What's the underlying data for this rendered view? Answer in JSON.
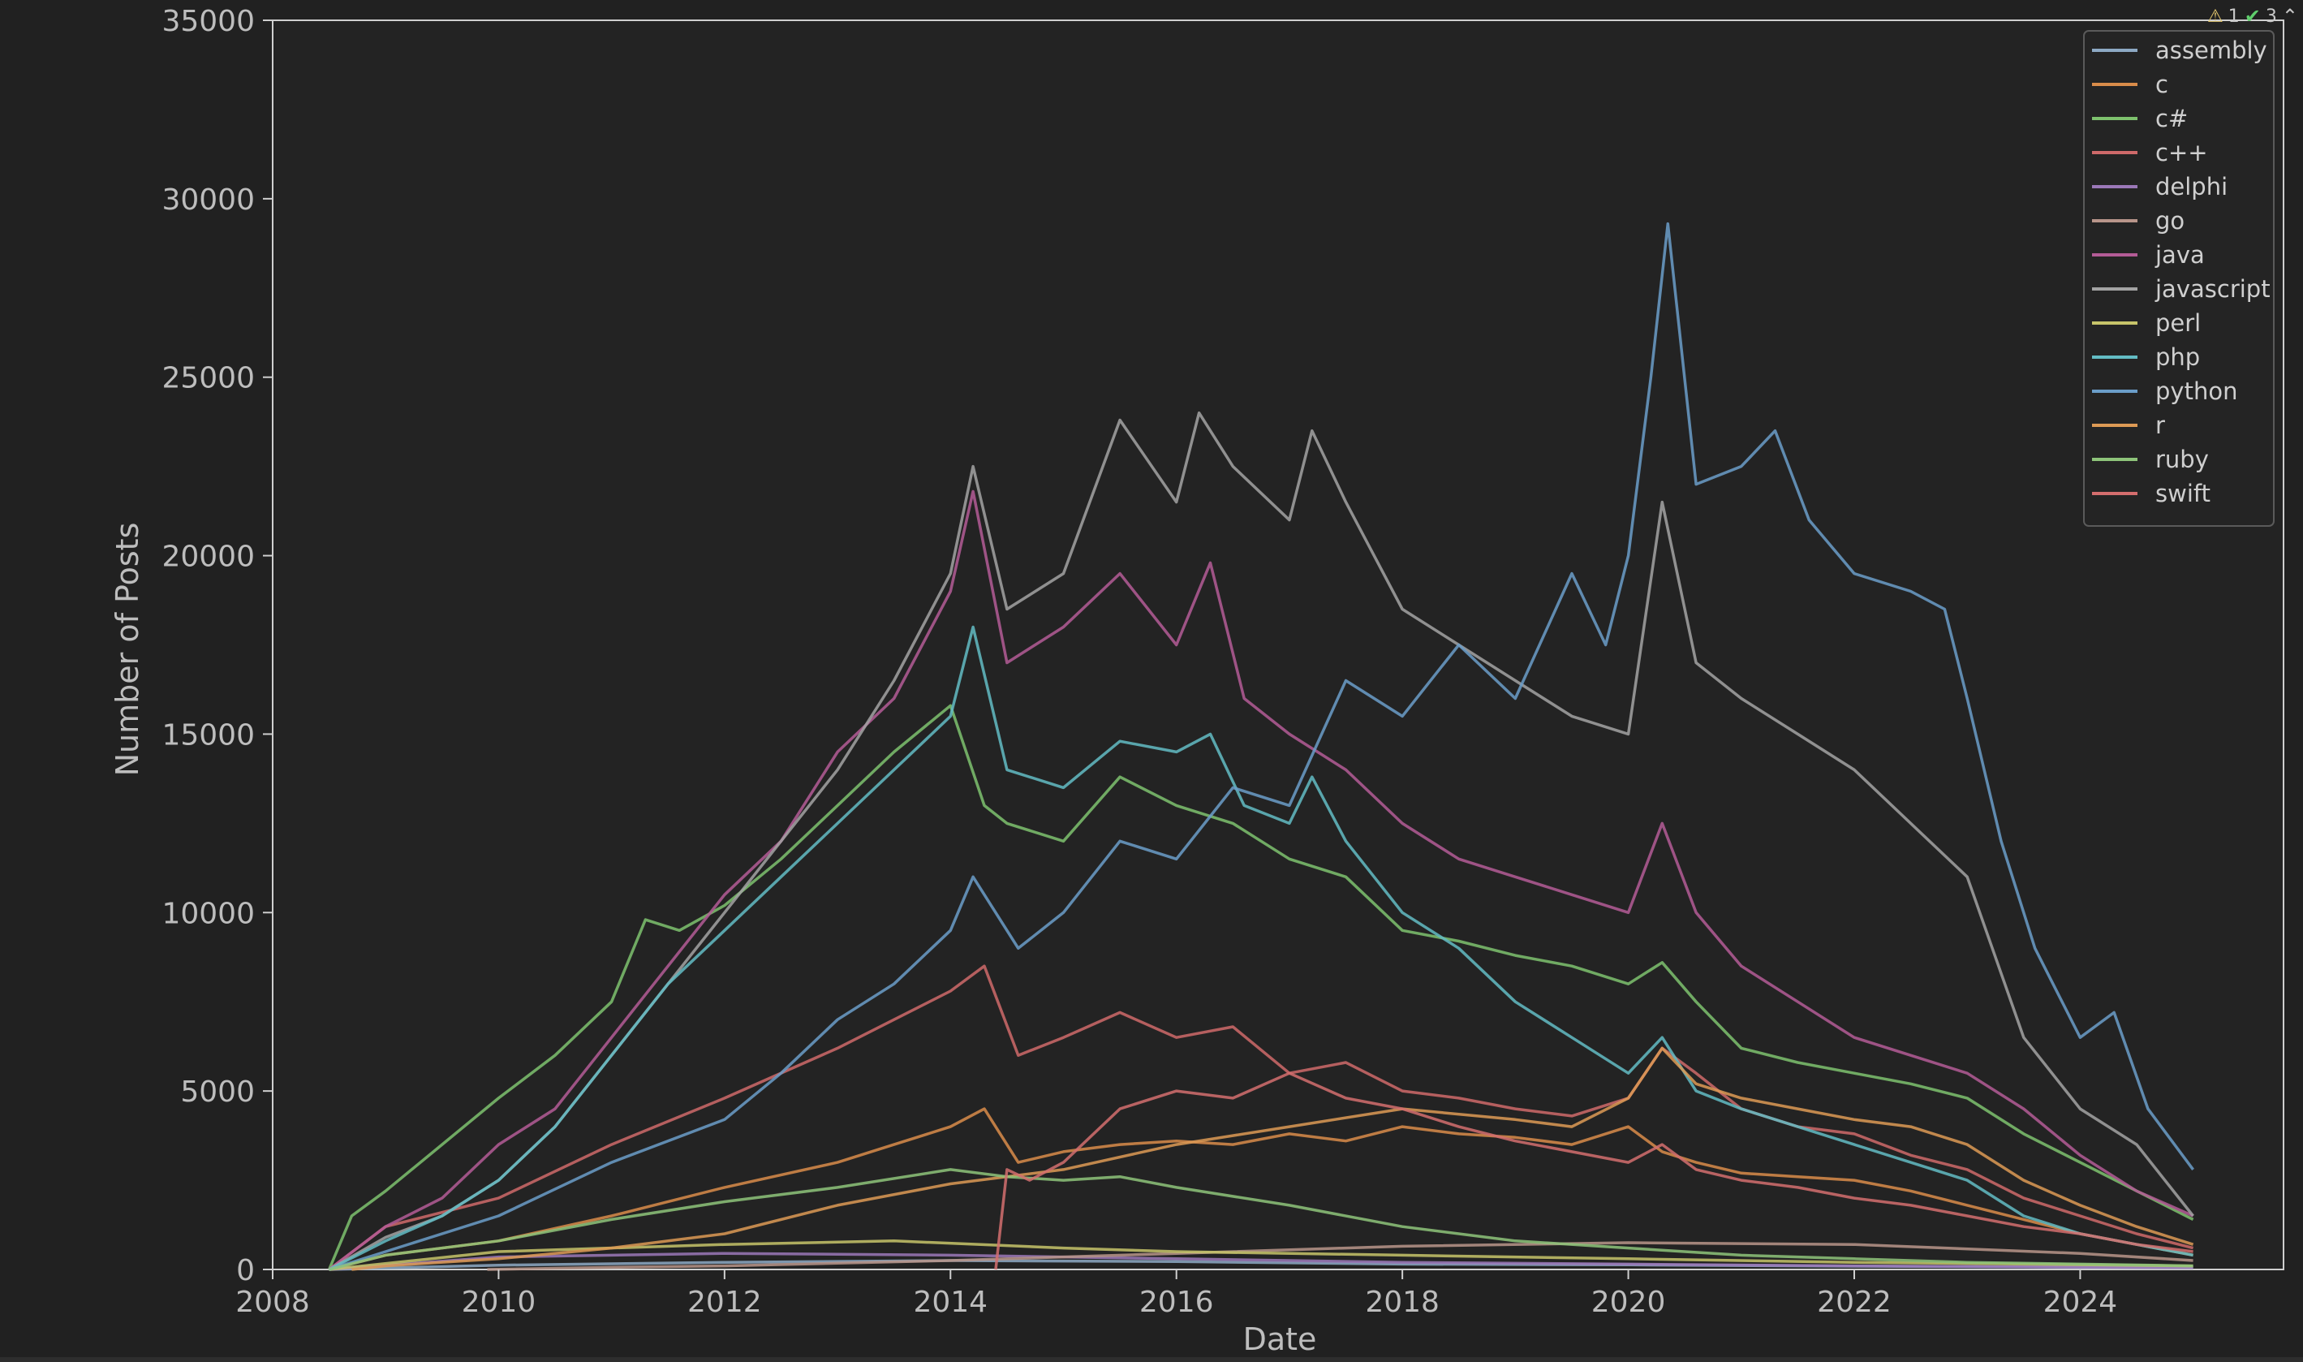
{
  "toolbar": {
    "warnings": "1",
    "checks": "3"
  },
  "chart_data": {
    "type": "line",
    "xlabel": "Date",
    "ylabel": "Number of Posts",
    "xlim": [
      2008.0,
      2025.8
    ],
    "ylim": [
      0,
      35000
    ],
    "xticks": [
      2008,
      2010,
      2012,
      2014,
      2016,
      2018,
      2020,
      2022,
      2024
    ],
    "yticks": [
      0,
      5000,
      10000,
      15000,
      20000,
      25000,
      30000,
      35000
    ],
    "grid": false,
    "legend_position": "top-right",
    "series": [
      {
        "name": "assembly",
        "color": "#8da9c4",
        "x": [
          2008.5,
          2010,
          2012,
          2014,
          2016,
          2018,
          2020,
          2022,
          2025
        ],
        "y": [
          0,
          120,
          200,
          250,
          220,
          150,
          130,
          90,
          50
        ]
      },
      {
        "name": "c",
        "color": "#d98c4a",
        "x": [
          2008.5,
          2009,
          2010,
          2011,
          2012,
          2013,
          2013.5,
          2014,
          2014.3,
          2014.6,
          2015,
          2015.5,
          2016,
          2016.5,
          2017,
          2017.5,
          2018,
          2018.5,
          2019,
          2019.5,
          2020,
          2020.3,
          2020.6,
          2021,
          2021.5,
          2022,
          2022.5,
          2023,
          2023.5,
          2024,
          2024.5,
          2025
        ],
        "y": [
          0,
          400,
          800,
          1500,
          2300,
          3000,
          3500,
          4000,
          4500,
          3000,
          3300,
          3500,
          3600,
          3500,
          3800,
          3600,
          4000,
          3800,
          3700,
          3500,
          4000,
          3300,
          3000,
          2700,
          2600,
          2500,
          2200,
          1800,
          1400,
          1000,
          700,
          400
        ]
      },
      {
        "name": "c#",
        "color": "#7ec26e",
        "x": [
          2008.5,
          2008.7,
          2009,
          2009.5,
          2010,
          2010.5,
          2011,
          2011.3,
          2011.6,
          2012,
          2012.5,
          2013,
          2013.5,
          2014,
          2014.3,
          2014.5,
          2015,
          2015.5,
          2016,
          2016.5,
          2017,
          2017.5,
          2018,
          2018.5,
          2019,
          2019.5,
          2020,
          2020.3,
          2020.6,
          2021,
          2021.5,
          2022,
          2022.5,
          2023,
          2023.5,
          2024,
          2024.5,
          2025
        ],
        "y": [
          0,
          1500,
          2200,
          3500,
          4800,
          6000,
          7500,
          9800,
          9500,
          10200,
          11500,
          13000,
          14500,
          15800,
          13000,
          12500,
          12000,
          13800,
          13000,
          12500,
          11500,
          11000,
          9500,
          9200,
          8800,
          8500,
          8000,
          8600,
          7500,
          6200,
          5800,
          5500,
          5200,
          4800,
          3800,
          3000,
          2200,
          1400
        ]
      },
      {
        "name": "c++",
        "color": "#cf6a6a",
        "x": [
          2008.5,
          2009,
          2010,
          2011,
          2012,
          2013,
          2013.5,
          2014,
          2014.3,
          2014.6,
          2015,
          2015.5,
          2016,
          2016.5,
          2017,
          2017.5,
          2018,
          2018.5,
          2019,
          2019.5,
          2020,
          2020.3,
          2020.6,
          2021,
          2021.5,
          2022,
          2022.5,
          2023,
          2023.5,
          2024,
          2024.5,
          2025
        ],
        "y": [
          0,
          1200,
          2000,
          3500,
          4800,
          6200,
          7000,
          7800,
          8500,
          6000,
          6500,
          7200,
          6500,
          6800,
          5500,
          5800,
          5000,
          4800,
          4500,
          4300,
          4800,
          6200,
          5500,
          4500,
          4000,
          3800,
          3200,
          2800,
          2000,
          1500,
          1000,
          600
        ]
      },
      {
        "name": "delphi",
        "color": "#9b78b8",
        "x": [
          2008.5,
          2010,
          2012,
          2014,
          2016,
          2018,
          2020,
          2022,
          2025
        ],
        "y": [
          0,
          350,
          450,
          400,
          300,
          200,
          150,
          100,
          50
        ]
      },
      {
        "name": "go",
        "color": "#b8958a",
        "x": [
          2009.9,
          2011,
          2012,
          2014,
          2016,
          2018,
          2020,
          2022,
          2024,
          2025
        ],
        "y": [
          0,
          60,
          100,
          250,
          450,
          650,
          750,
          700,
          450,
          250
        ]
      },
      {
        "name": "java",
        "color": "#b45c96",
        "x": [
          2008.5,
          2009,
          2009.5,
          2010,
          2010.5,
          2011,
          2011.5,
          2012,
          2012.5,
          2013,
          2013.5,
          2014,
          2014.2,
          2014.5,
          2015,
          2015.5,
          2016,
          2016.3,
          2016.6,
          2017,
          2017.5,
          2018,
          2018.5,
          2019,
          2019.5,
          2020,
          2020.3,
          2020.6,
          2021,
          2021.5,
          2022,
          2022.5,
          2023,
          2023.5,
          2024,
          2024.5,
          2025
        ],
        "y": [
          0,
          1200,
          2000,
          3500,
          4500,
          6500,
          8500,
          10500,
          12000,
          14500,
          16000,
          19000,
          21800,
          17000,
          18000,
          19500,
          17500,
          19800,
          16000,
          15000,
          14000,
          12500,
          11500,
          11000,
          10500,
          10000,
          12500,
          10000,
          8500,
          7500,
          6500,
          6000,
          5500,
          4500,
          3200,
          2200,
          1500
        ]
      },
      {
        "name": "javascript",
        "color": "#a3a3a3",
        "x": [
          2008.5,
          2009,
          2009.5,
          2010,
          2010.5,
          2011,
          2011.5,
          2012,
          2012.5,
          2013,
          2013.5,
          2014,
          2014.2,
          2014.5,
          2015,
          2015.5,
          2016,
          2016.2,
          2016.5,
          2017,
          2017.2,
          2017.5,
          2018,
          2018.5,
          2019,
          2019.5,
          2020,
          2020.3,
          2020.6,
          2021,
          2021.5,
          2022,
          2022.5,
          2023,
          2023.5,
          2024,
          2024.5,
          2025
        ],
        "y": [
          0,
          900,
          1500,
          2500,
          4000,
          6000,
          8000,
          10000,
          12000,
          14000,
          16500,
          19500,
          22500,
          18500,
          19500,
          23800,
          21500,
          24000,
          22500,
          21000,
          23500,
          21500,
          18500,
          17500,
          16500,
          15500,
          15000,
          21500,
          17000,
          16000,
          15000,
          14000,
          12500,
          11000,
          6500,
          4500,
          3500,
          1500
        ]
      },
      {
        "name": "perl",
        "color": "#c7c46a",
        "x": [
          2008.5,
          2010,
          2012,
          2013.5,
          2015,
          2016,
          2018,
          2020,
          2022,
          2025
        ],
        "y": [
          0,
          500,
          700,
          800,
          600,
          500,
          400,
          300,
          200,
          100
        ]
      },
      {
        "name": "php",
        "color": "#63bcc4",
        "x": [
          2008.5,
          2009,
          2009.5,
          2010,
          2010.5,
          2011,
          2011.5,
          2012,
          2012.5,
          2013,
          2013.5,
          2014,
          2014.2,
          2014.5,
          2015,
          2015.5,
          2016,
          2016.3,
          2016.6,
          2017,
          2017.2,
          2017.5,
          2018,
          2018.5,
          2019,
          2019.5,
          2020,
          2020.3,
          2020.6,
          2021,
          2021.5,
          2022,
          2022.5,
          2023,
          2023.5,
          2024,
          2024.5,
          2025
        ],
        "y": [
          0,
          800,
          1500,
          2500,
          4000,
          6000,
          8000,
          9500,
          11000,
          12500,
          14000,
          15500,
          18000,
          14000,
          13500,
          14800,
          14500,
          15000,
          13000,
          12500,
          13800,
          12000,
          10000,
          9000,
          7500,
          6500,
          5500,
          6500,
          5000,
          4500,
          4000,
          3500,
          3000,
          2500,
          1500,
          1000,
          700,
          400
        ]
      },
      {
        "name": "python",
        "color": "#6b9ec9",
        "x": [
          2008.5,
          2009,
          2010,
          2011,
          2012,
          2012.5,
          2013,
          2013.5,
          2014,
          2014.2,
          2014.6,
          2015,
          2015.5,
          2016,
          2016.5,
          2017,
          2017.5,
          2018,
          2018.5,
          2019,
          2019.5,
          2019.8,
          2020,
          2020.2,
          2020.35,
          2020.6,
          2021,
          2021.3,
          2021.6,
          2022,
          2022.5,
          2022.8,
          2023,
          2023.3,
          2023.6,
          2024,
          2024.3,
          2024.6,
          2025
        ],
        "y": [
          0,
          500,
          1500,
          3000,
          4200,
          5500,
          7000,
          8000,
          9500,
          11000,
          9000,
          10000,
          12000,
          11500,
          13500,
          13000,
          16500,
          15500,
          17500,
          16000,
          19500,
          17500,
          20000,
          25000,
          29300,
          22000,
          22500,
          23500,
          21000,
          19500,
          19000,
          18500,
          16000,
          12000,
          9000,
          6500,
          7200,
          4500,
          2800
        ]
      },
      {
        "name": "r",
        "color": "#dd9a55",
        "x": [
          2008.7,
          2009,
          2010,
          2011,
          2012,
          2013,
          2014,
          2015,
          2016,
          2017,
          2018,
          2019,
          2019.5,
          2020,
          2020.3,
          2020.6,
          2021,
          2021.5,
          2022,
          2022.5,
          2023,
          2023.5,
          2024,
          2024.5,
          2025
        ],
        "y": [
          0,
          100,
          300,
          600,
          1000,
          1800,
          2400,
          2800,
          3500,
          4000,
          4500,
          4200,
          4000,
          4800,
          6200,
          5200,
          4800,
          4500,
          4200,
          4000,
          3500,
          2500,
          1800,
          1200,
          700
        ]
      },
      {
        "name": "ruby",
        "color": "#8ec47a",
        "x": [
          2008.5,
          2009,
          2010,
          2011,
          2012,
          2013,
          2014,
          2014.5,
          2015,
          2015.5,
          2016,
          2017,
          2018,
          2019,
          2020,
          2021,
          2022,
          2023,
          2024,
          2025
        ],
        "y": [
          0,
          400,
          800,
          1400,
          1900,
          2300,
          2800,
          2600,
          2500,
          2600,
          2300,
          1800,
          1200,
          800,
          600,
          400,
          300,
          200,
          150,
          100
        ]
      },
      {
        "name": "swift",
        "color": "#d46e6e",
        "x": [
          2014.4,
          2014.5,
          2014.7,
          2015,
          2015.5,
          2016,
          2016.5,
          2017,
          2017.5,
          2018,
          2018.5,
          2019,
          2019.5,
          2020,
          2020.3,
          2020.6,
          2021,
          2021.5,
          2022,
          2022.5,
          2023,
          2023.5,
          2024,
          2024.5,
          2025
        ],
        "y": [
          0,
          2800,
          2500,
          3000,
          4500,
          5000,
          4800,
          5500,
          4800,
          4500,
          4000,
          3600,
          3300,
          3000,
          3500,
          2800,
          2500,
          2300,
          2000,
          1800,
          1500,
          1200,
          1000,
          700,
          500
        ]
      }
    ]
  }
}
